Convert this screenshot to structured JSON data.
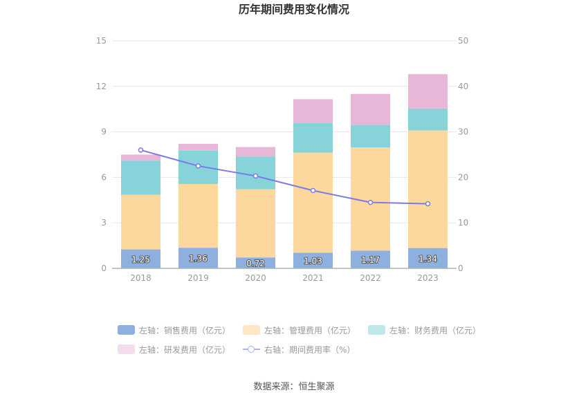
{
  "chart_data": {
    "type": "bar",
    "title": "历年期间费用变化情况",
    "categories": [
      "2018",
      "2019",
      "2020",
      "2021",
      "2022",
      "2023"
    ],
    "stacked": true,
    "left_axis": {
      "min": 0,
      "max": 15,
      "ticks": [
        "0",
        "3",
        "6",
        "9",
        "12",
        "15"
      ]
    },
    "right_axis": {
      "min": 0,
      "max": 50,
      "ticks": [
        "0",
        "10",
        "20",
        "30",
        "40",
        "50"
      ]
    },
    "series": [
      {
        "name": "左轴：销售费用（亿元）",
        "axis": "left",
        "color": "#8eb0de",
        "values": [
          1.25,
          1.36,
          0.72,
          1.03,
          1.17,
          1.34
        ],
        "labels": [
          "1.25",
          "1.36",
          "0.72",
          "1.03",
          "1.17",
          "1.34"
        ]
      },
      {
        "name": "左轴：管理费用（亿元）",
        "axis": "left",
        "color": "#fdd89d",
        "values": [
          3.6,
          4.2,
          4.5,
          6.6,
          6.8,
          7.75
        ]
      },
      {
        "name": "左轴：财务费用（亿元）",
        "axis": "left",
        "color": "#86d4d9",
        "values": [
          2.25,
          2.2,
          2.15,
          1.95,
          1.5,
          1.45
        ]
      },
      {
        "name": "左轴：研发费用（亿元）",
        "axis": "left",
        "color": "#e8b7d8",
        "values": [
          0.4,
          0.45,
          0.63,
          1.57,
          2.03,
          2.26
        ]
      },
      {
        "name": "右轴：期间费用率（%）",
        "type": "line",
        "axis": "right",
        "color": "#7b7be8",
        "values": [
          26.0,
          22.5,
          20.3,
          17.1,
          14.5,
          14.2
        ]
      }
    ],
    "legend_position": "bottom",
    "grid": true
  },
  "legend": [
    {
      "label": "左轴：销售费用（亿元）",
      "color": "#8eb0de",
      "kind": "box"
    },
    {
      "label": "左轴：管理费用（亿元）",
      "color": "#fde6c4",
      "kind": "box"
    },
    {
      "label": "左轴：财务费用（亿元）",
      "color": "#bfe8eb",
      "kind": "box"
    },
    {
      "label": "左轴：研发费用（亿元）",
      "color": "#f3dcec",
      "kind": "box"
    },
    {
      "label": "右轴：期间费用率（%）",
      "color": "#aab4f0",
      "kind": "line"
    }
  ],
  "source": "数据来源：恒生聚源"
}
